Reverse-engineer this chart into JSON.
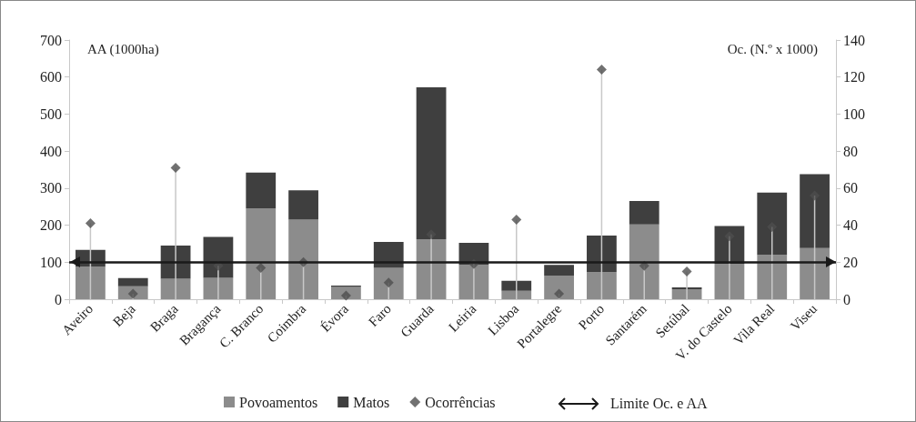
{
  "chart_data": {
    "type": "bar",
    "stacked": true,
    "ylabel": "AA (1000ha)",
    "y2label": "Oc. (N.º x 1000)",
    "categories": [
      "Aveiro",
      "Beja",
      "Braga",
      "Bragança",
      "C. Branco",
      "Coimbra",
      "Évora",
      "Faro",
      "Guarda",
      "Leiria",
      "Lisboa",
      "Portalegre",
      "Porto",
      "Santarém",
      "Setúbal",
      "V. do Castelo",
      "Vila Real",
      "Viseu"
    ],
    "series": [
      {
        "name": "Povoamentos",
        "color": "#8c8c8c",
        "values": [
          88,
          35,
          55,
          58,
          245,
          215,
          33,
          85,
          162,
          93,
          23,
          64,
          73,
          202,
          27,
          95,
          120,
          138
        ]
      },
      {
        "name": "Matos",
        "color": "#3f3f3f",
        "values": [
          45,
          22,
          90,
          110,
          97,
          79,
          4,
          70,
          410,
          59,
          27,
          29,
          99,
          63,
          5,
          103,
          168,
          200
        ]
      },
      {
        "name": "Ocorrências",
        "type": "lollipop",
        "axis": "y2",
        "color": "#4d4d4d",
        "marker": "diamond",
        "values": [
          41,
          3,
          71,
          18,
          17,
          20,
          2,
          9,
          35,
          19,
          43,
          3,
          124,
          18,
          15,
          34,
          39,
          56
        ]
      }
    ],
    "ylim": [
      0,
      700
    ],
    "yticks": [
      0,
      100,
      200,
      300,
      400,
      500,
      600,
      700
    ],
    "y2lim": [
      0,
      140
    ],
    "y2ticks": [
      0,
      20,
      40,
      60,
      80,
      100,
      120,
      140
    ],
    "ref_lines": [
      {
        "axis": "y",
        "value": 100,
        "label": "Limite Oc. e AA",
        "color": "#1a1a1a"
      }
    ],
    "grid": false,
    "legend": "bottom"
  }
}
